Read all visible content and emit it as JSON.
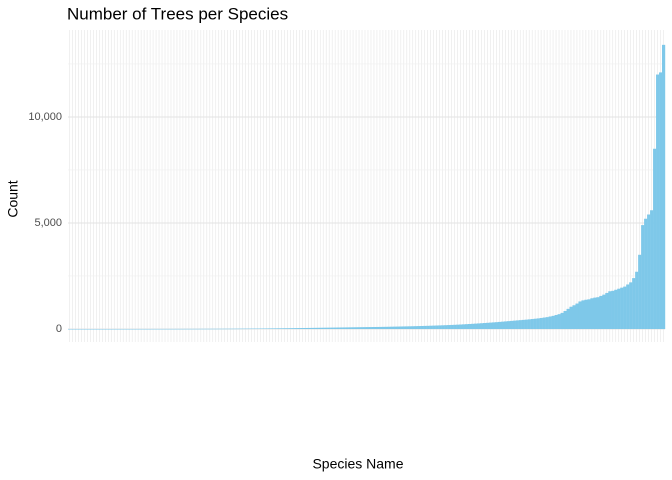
{
  "chart_data": {
    "type": "bar",
    "title": "Number of Trees per Species",
    "x_label": "Species Name",
    "y_label": "Count",
    "categories": [
      null,
      null,
      null,
      null,
      null,
      null,
      null,
      null,
      null,
      null,
      null,
      null,
      null,
      null,
      null,
      null,
      null,
      null,
      null,
      null,
      null,
      null,
      null,
      null,
      null,
      null,
      null,
      null,
      null,
      null,
      null,
      null,
      null,
      null,
      null,
      null,
      null,
      null,
      null,
      null,
      null,
      null,
      null,
      null,
      null,
      null,
      null,
      null,
      null,
      null,
      null,
      null,
      null,
      null,
      null,
      null,
      null,
      null,
      null,
      null,
      null,
      null,
      null,
      null,
      null,
      null,
      null,
      null,
      null,
      null,
      null,
      null,
      null,
      null,
      null,
      null,
      null,
      null,
      null,
      null,
      null,
      null,
      null,
      null,
      null,
      null,
      null,
      null,
      null,
      null,
      null,
      null,
      null,
      null,
      null,
      null,
      null,
      null,
      null,
      null,
      null,
      null,
      null,
      null,
      null,
      null,
      null,
      null,
      null,
      null,
      null,
      null,
      null,
      null,
      null,
      null,
      null,
      null,
      null,
      null,
      null,
      null,
      null,
      null,
      null,
      null,
      null,
      null,
      null,
      null,
      null,
      null,
      null,
      null,
      null,
      null,
      null,
      null,
      null,
      null,
      null,
      null,
      null,
      null,
      null,
      null,
      null,
      null,
      null,
      null,
      null,
      null,
      null,
      null,
      null,
      null,
      null,
      null,
      null,
      null,
      null,
      null,
      null,
      null,
      null,
      null,
      null,
      null,
      null,
      null,
      null,
      null,
      null,
      null,
      null,
      null,
      null,
      null,
      null,
      null,
      null,
      null,
      null,
      null,
      null,
      null,
      null,
      null,
      null,
      null,
      null,
      null,
      null,
      null,
      null,
      null,
      null,
      null,
      null,
      null
    ],
    "values": [
      1,
      1,
      1,
      1,
      1,
      1,
      1,
      1,
      1,
      1,
      1,
      1,
      1,
      1,
      1,
      2,
      2,
      2,
      2,
      2,
      2,
      2,
      2,
      3,
      3,
      3,
      3,
      3,
      4,
      4,
      4,
      4,
      5,
      5,
      5,
      5,
      6,
      6,
      6,
      7,
      7,
      7,
      8,
      8,
      9,
      9,
      10,
      10,
      11,
      11,
      12,
      12,
      13,
      14,
      14,
      15,
      16,
      17,
      18,
      19,
      20,
      21,
      22,
      23,
      24,
      25,
      26,
      28,
      29,
      30,
      32,
      33,
      35,
      36,
      38,
      40,
      42,
      44,
      46,
      48,
      50,
      52,
      54,
      56,
      58,
      60,
      62,
      64,
      66,
      68,
      70,
      72,
      74,
      76,
      78,
      80,
      82,
      84,
      86,
      88,
      90,
      92,
      94,
      96,
      98,
      100,
      103,
      106,
      109,
      112,
      115,
      118,
      121,
      124,
      127,
      130,
      134,
      138,
      142,
      146,
      150,
      155,
      160,
      165,
      170,
      175,
      180,
      186,
      192,
      198,
      205,
      212,
      220,
      228,
      236,
      245,
      254,
      263,
      272,
      282,
      292,
      302,
      312,
      322,
      334,
      346,
      358,
      370,
      382,
      394,
      406,
      418,
      430,
      442,
      455,
      470,
      485,
      500,
      520,
      540,
      560,
      590,
      620,
      660,
      700,
      760,
      850,
      950,
      1050,
      1120,
      1200,
      1300,
      1350,
      1380,
      1400,
      1450,
      1480,
      1500,
      1560,
      1620,
      1700,
      1780,
      1800,
      1850,
      1900,
      1950,
      2000,
      2100,
      2200,
      2400,
      2700,
      3500,
      4900,
      5200,
      5400,
      5600,
      8500,
      12000,
      12100,
      13400
    ],
    "color": "#7ec8e9",
    "ylim": [
      -613,
      14100
    ],
    "yticks": [
      0,
      {
        "value": 5000,
        "label": "5,000"
      },
      {
        "value": 10000,
        "label": "10,000"
      }
    ],
    "grid": true
  }
}
